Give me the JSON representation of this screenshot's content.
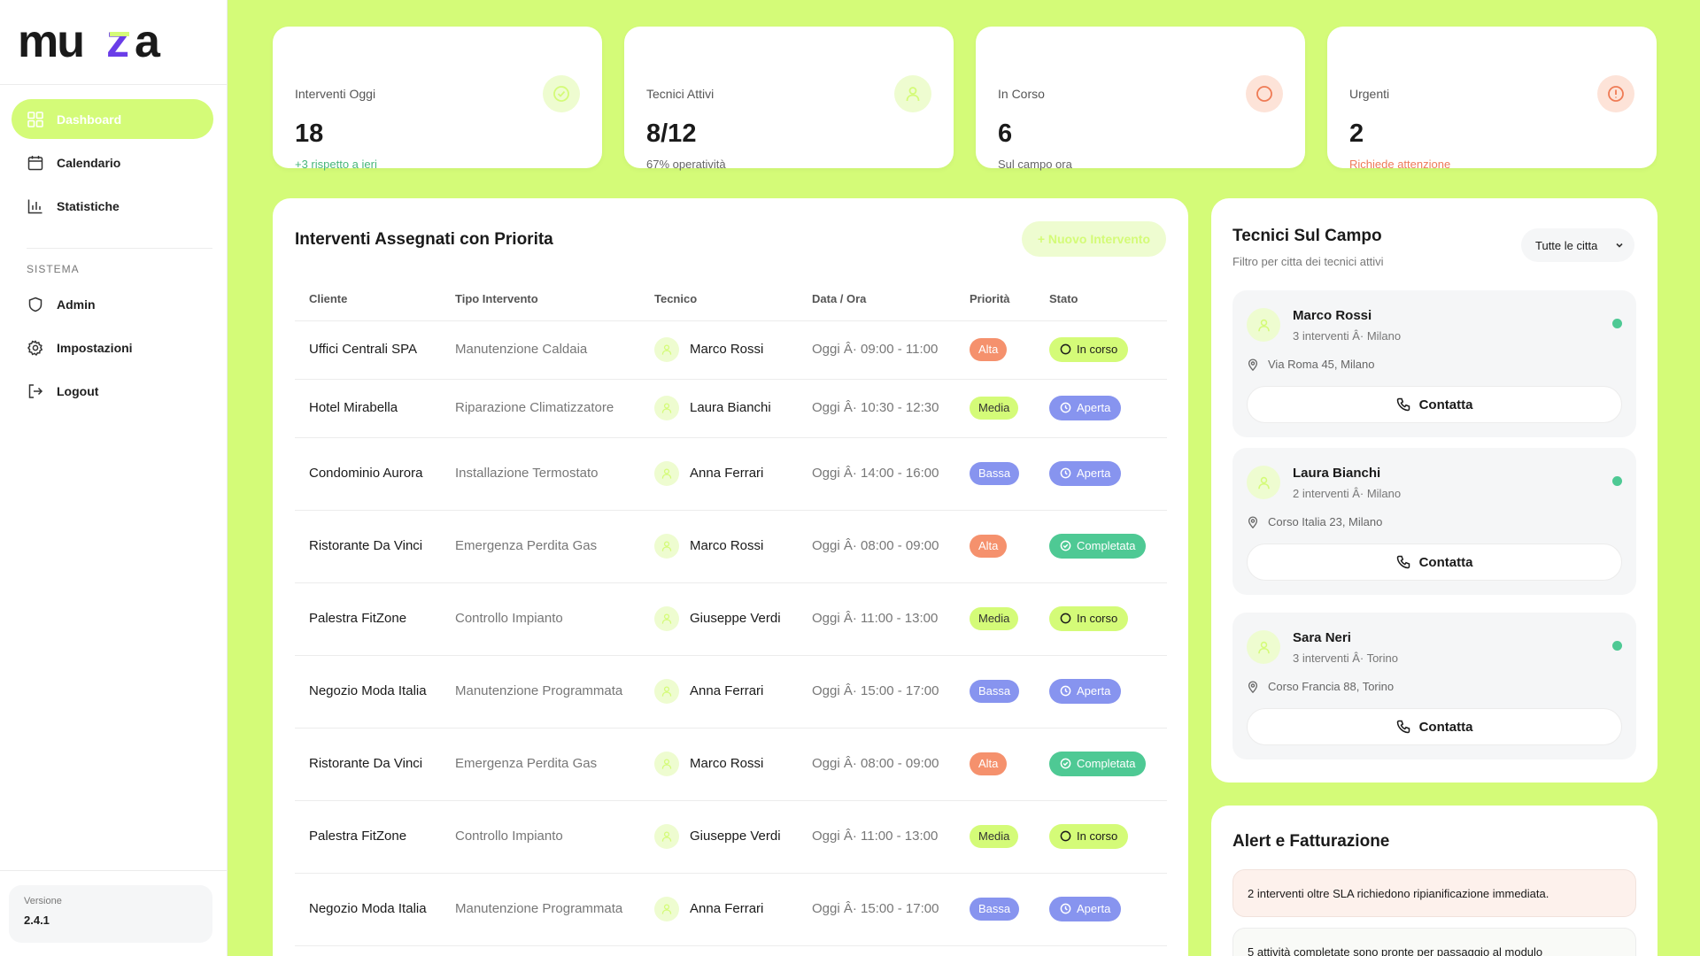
{
  "brand": {
    "logo_text": "muza",
    "accent": "#d4fb78",
    "logo_accent": "#6a3de8"
  },
  "sidebar": {
    "main_items": [
      {
        "label": "Dashboard",
        "icon": "grid-icon",
        "active": true
      },
      {
        "label": "Calendario",
        "icon": "calendar-icon",
        "active": false
      },
      {
        "label": "Statistiche",
        "icon": "bar-chart-icon",
        "active": false
      }
    ],
    "section_label": "SISTEMA",
    "system_items": [
      {
        "label": "Admin",
        "icon": "shield-icon"
      },
      {
        "label": "Impostazioni",
        "icon": "gear-icon"
      },
      {
        "label": "Logout",
        "icon": "logout-icon"
      }
    ],
    "version_label": "Versione",
    "version_value": "2.4.1"
  },
  "stats": [
    {
      "title": "Interventi Oggi",
      "value": "18",
      "sub": "+3 rispetto a ieri",
      "icon": "check-circle-icon"
    },
    {
      "title": "Tecnici Attivi",
      "value": "8/12",
      "sub": "67% operatività",
      "icon": "user-icon"
    },
    {
      "title": "In Corso",
      "value": "6",
      "sub": "Sul campo ora",
      "icon": "circle-icon"
    },
    {
      "title": "Urgenti",
      "value": "2",
      "sub": "Richiede attenzione",
      "icon": "alert-circle-icon"
    }
  ],
  "interventions": {
    "title": "Interventi Assegnati con Priorita",
    "new_button": "+ Nuovo Intervento",
    "columns": [
      "Cliente",
      "Tipo Intervento",
      "Tecnico",
      "Data / Ora",
      "Priorità",
      "Stato"
    ],
    "rows": [
      {
        "cliente": "Uffici Centrali SPA",
        "tipo": "Manutenzione Caldaia",
        "tecnico": "Marco Rossi",
        "data": "Oggi Â· 09:00 - 11:00",
        "priorita": "Alta",
        "stato": "In corso"
      },
      {
        "cliente": "Hotel Mirabella",
        "tipo": "Riparazione Climatizzatore",
        "tecnico": "Laura Bianchi",
        "data": "Oggi Â· 10:30 - 12:30",
        "priorita": "Media",
        "stato": "Aperta"
      },
      {
        "cliente": "Condominio Aurora",
        "tipo": "Installazione Termostato",
        "tecnico": "Anna Ferrari",
        "data": "Oggi Â· 14:00 - 16:00",
        "priorita": "Bassa",
        "stato": "Aperta"
      },
      {
        "cliente": "Ristorante Da Vinci",
        "tipo": "Emergenza Perdita Gas",
        "tecnico": "Marco Rossi",
        "data": "Oggi Â· 08:00 - 09:00",
        "priorita": "Alta",
        "stato": "Completata"
      },
      {
        "cliente": "Palestra FitZone",
        "tipo": "Controllo Impianto",
        "tecnico": "Giuseppe Verdi",
        "data": "Oggi Â· 11:00 - 13:00",
        "priorita": "Media",
        "stato": "In corso"
      },
      {
        "cliente": "Negozio Moda Italia",
        "tipo": "Manutenzione Programmata",
        "tecnico": "Anna Ferrari",
        "data": "Oggi Â· 15:00 - 17:00",
        "priorita": "Bassa",
        "stato": "Aperta"
      },
      {
        "cliente": "Ristorante Da Vinci",
        "tipo": "Emergenza Perdita Gas",
        "tecnico": "Marco Rossi",
        "data": "Oggi Â· 08:00 - 09:00",
        "priorita": "Alta",
        "stato": "Completata"
      },
      {
        "cliente": "Palestra FitZone",
        "tipo": "Controllo Impianto",
        "tecnico": "Giuseppe Verdi",
        "data": "Oggi Â· 11:00 - 13:00",
        "priorita": "Media",
        "stato": "In corso"
      },
      {
        "cliente": "Negozio Moda Italia",
        "tipo": "Manutenzione Programmata",
        "tecnico": "Anna Ferrari",
        "data": "Oggi Â· 15:00 - 17:00",
        "priorita": "Bassa",
        "stato": "Aperta"
      }
    ]
  },
  "technicians": {
    "title": "Tecnici Sul Campo",
    "subtitle": "Filtro per citta dei tecnici attivi",
    "filter_value": "Tutte le citta",
    "contact_label": "Contatta",
    "items": [
      {
        "name": "Marco Rossi",
        "info": "3 interventi Â· Milano",
        "address": "Via Roma 45, Milano"
      },
      {
        "name": "Laura Bianchi",
        "info": "2 interventi Â· Milano",
        "address": "Corso Italia 23, Milano"
      },
      {
        "name": "Sara Neri",
        "info": "3 interventi Â· Torino",
        "address": "Corso Francia 88, Torino"
      }
    ]
  },
  "alerts": {
    "title": "Alert e Fatturazione",
    "items": [
      "2 interventi oltre SLA richiedono ripianificazione immediata.",
      "5 attività completate sono pronte per passaggio al modulo"
    ]
  }
}
